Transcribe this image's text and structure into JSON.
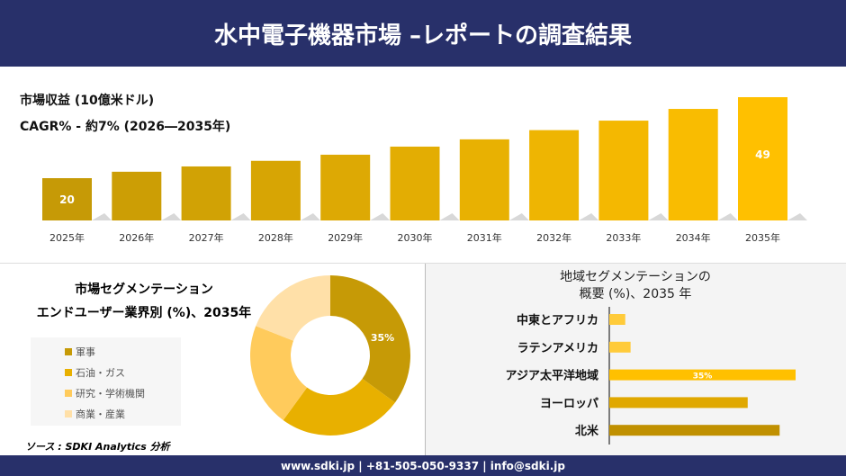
{
  "header": {
    "title": "水中電子機器市場 –レポートの調査結果"
  },
  "top": {
    "revenue_label": "市場収益 (10億米ドル)",
    "cagr_label": "CAGR% - 約7% (2026―2035年)"
  },
  "colors": {
    "navy": "#28306a",
    "bar_start": "#c69a06",
    "bar_end": "#ffc000"
  },
  "chart_data": [
    {
      "type": "bar",
      "title": "市場収益 (10億米ドル)",
      "categories": [
        "2025年",
        "2026年",
        "2027年",
        "2028年",
        "2029年",
        "2030年",
        "2031年",
        "2032年",
        "2033年",
        "2034年",
        "2035年"
      ],
      "values": [
        20,
        22.3,
        24.2,
        26.2,
        28.4,
        31.3,
        33.9,
        37.2,
        40.6,
        44.8,
        49
      ],
      "data_labels": {
        "0": "20",
        "10": "49"
      }
    },
    {
      "type": "pie",
      "title": "市場セグメンテーション エンドユーザー業界別 (%)、2035年",
      "title_lines": [
        "市場セグメンテーション",
        "エンドユーザー業界別 (%)、2035年"
      ],
      "categories": [
        "軍事",
        "石油・ガス",
        "研究・学術機関",
        "商業・産業"
      ],
      "values": [
        35,
        25,
        21,
        19
      ],
      "colors": [
        "#c69a06",
        "#e8b000",
        "#ffcb5c",
        "#ffe0a8"
      ],
      "data_labels": {
        "0": "35%"
      }
    },
    {
      "type": "bar",
      "orientation": "horizontal",
      "title": "地域セグメンテーションの 概要 (%)、2035 年",
      "title_lines": [
        "地域セグメンテーションの",
        "概要 (%)、2035 年"
      ],
      "categories": [
        "中東とアフリカ",
        "ラテンアメリカ",
        "アジア太平洋地域",
        "ヨーロッパ",
        "北米"
      ],
      "values": [
        3,
        4,
        35,
        26,
        32
      ],
      "colors": [
        "#ffcb3a",
        "#ffcb3a",
        "#ffc000",
        "#e0a800",
        "#c09000"
      ],
      "data_labels": {
        "2": "35%"
      }
    }
  ],
  "source": "ソース : SDKI Analytics 分析",
  "footer": {
    "text": "www.sdki.jp | +81-505-050-9337 | info@sdki.jp"
  }
}
